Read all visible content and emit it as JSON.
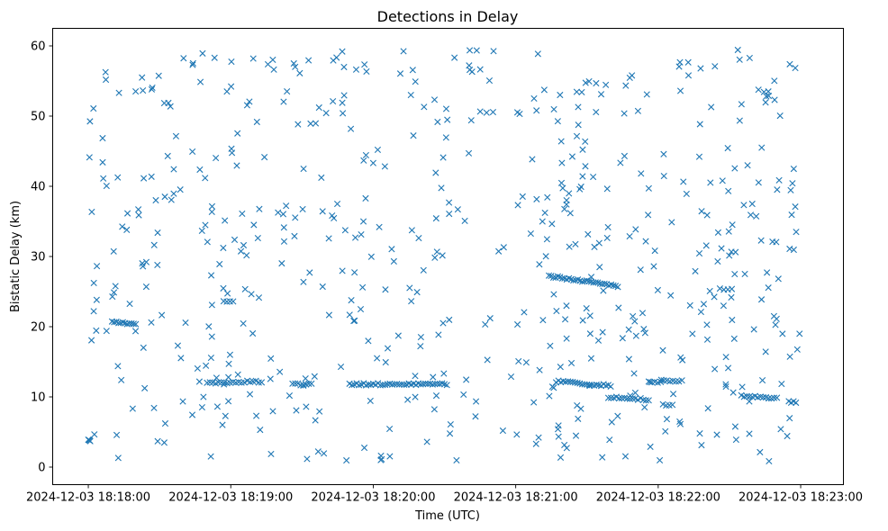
{
  "chart_data": {
    "type": "scatter",
    "title": "Detections in Delay",
    "xlabel": "Time (UTC)",
    "ylabel": "Bistatic Delay (km)",
    "marker": "x",
    "color": "#1f77b4",
    "xlim_seconds": [
      -15,
      318
    ],
    "ylim": [
      -2.5,
      62.5
    ],
    "x_ticks": [
      {
        "seconds": 0,
        "label": "2024-12-03 18:18:00"
      },
      {
        "seconds": 60,
        "label": "2024-12-03 18:19:00"
      },
      {
        "seconds": 120,
        "label": "2024-12-03 18:20:00"
      },
      {
        "seconds": 180,
        "label": "2024-12-03 18:21:00"
      },
      {
        "seconds": 240,
        "label": "2024-12-03 18:22:00"
      },
      {
        "seconds": 300,
        "label": "2024-12-03 18:23:00"
      }
    ],
    "y_ticks": [
      0,
      10,
      20,
      30,
      40,
      50,
      60
    ],
    "x_units": "seconds since 2024-12-03 18:18:00 UTC",
    "tracks": [
      {
        "x_start": 0,
        "x_end": 0.8,
        "y_start": 3.8,
        "y_end": 3.8,
        "count": 4
      },
      {
        "x_start": 10,
        "x_end": 20,
        "y_start": 20.6,
        "y_end": 20.4,
        "count": 12
      },
      {
        "x_start": 50,
        "x_end": 73,
        "y_start": 12.0,
        "y_end": 12.2,
        "count": 20
      },
      {
        "x_start": 57,
        "x_end": 61,
        "y_start": 23.6,
        "y_end": 23.6,
        "count": 4
      },
      {
        "x_start": 86,
        "x_end": 94,
        "y_start": 11.8,
        "y_end": 11.8,
        "count": 8
      },
      {
        "x_start": 110,
        "x_end": 151,
        "y_start": 11.8,
        "y_end": 11.8,
        "count": 42
      },
      {
        "x_start": 194,
        "x_end": 223,
        "y_start": 27.2,
        "y_end": 25.8,
        "count": 32
      },
      {
        "x_start": 197,
        "x_end": 220,
        "y_start": 12.2,
        "y_end": 11.6,
        "count": 24
      },
      {
        "x_start": 219,
        "x_end": 236,
        "y_start": 10.0,
        "y_end": 9.6,
        "count": 16
      },
      {
        "x_start": 236,
        "x_end": 250,
        "y_start": 12.1,
        "y_end": 12.3,
        "count": 12
      },
      {
        "x_start": 275,
        "x_end": 290,
        "y_start": 10.1,
        "y_end": 9.8,
        "count": 14
      },
      {
        "x_start": 295,
        "x_end": 298,
        "y_start": 9.3,
        "y_end": 9.3,
        "count": 4
      },
      {
        "x_start": 242,
        "x_end": 246,
        "y_start": 8.8,
        "y_end": 8.8,
        "count": 4
      },
      {
        "x_start": 266,
        "x_end": 271,
        "y_start": 25.3,
        "y_end": 25.3,
        "count": 4
      }
    ],
    "scatter_count": 580,
    "scatter_seed": 20241203
  }
}
